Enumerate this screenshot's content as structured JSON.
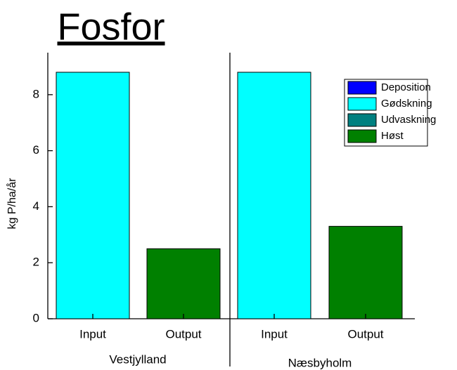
{
  "chart_data": {
    "type": "bar",
    "stacked": true,
    "title": "Fosfor",
    "ylabel": "kg P/ha/år",
    "categories": [
      "Input",
      "Output",
      "Input",
      "Output"
    ],
    "groups": [
      "Vestjylland",
      "Næsbyholm"
    ],
    "series": [
      {
        "name": "Deposition",
        "color": "#0000ff",
        "values": [
          0,
          0,
          0,
          0
        ]
      },
      {
        "name": "Gødskning",
        "color": "#00ffff",
        "values": [
          8.8,
          0,
          8.8,
          0
        ]
      },
      {
        "name": "Udvaskning",
        "color": "#008080",
        "values": [
          0,
          0,
          0,
          0
        ]
      },
      {
        "name": "Høst",
        "color": "#008000",
        "values": [
          0,
          2.5,
          0,
          3.3
        ]
      }
    ],
    "ylim": [
      0,
      9.5
    ],
    "yticks": [
      0,
      2,
      4,
      6,
      8
    ],
    "grid": false,
    "legend": "upper right"
  }
}
